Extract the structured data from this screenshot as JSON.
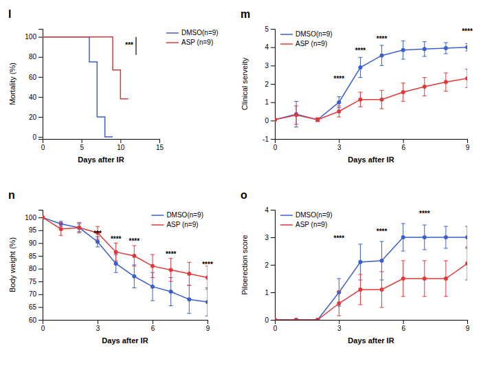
{
  "chart_data": [
    {
      "type": "line",
      "title": "l",
      "xlabel": "Days after IR",
      "ylabel": "Mortality (%)",
      "xlim": [
        0,
        15
      ],
      "ylim": [
        -2,
        108
      ],
      "xticks": [
        0,
        5,
        10,
        15
      ],
      "yticks": [
        0,
        20,
        40,
        60,
        80,
        100
      ],
      "grid": false,
      "legend": "right",
      "series": [
        {
          "name": "DMSO(n=9)",
          "color": "#3a5fcd",
          "x": [
            0,
            6,
            6,
            7,
            7,
            8,
            8,
            9
          ],
          "values": [
            100,
            100,
            75,
            75,
            20,
            20,
            0,
            0
          ]
        },
        {
          "name": "ASP (n=9)",
          "color": "#e0393a",
          "x": [
            0,
            9,
            9,
            10,
            10,
            11
          ],
          "values": [
            100,
            100,
            67,
            67,
            38,
            38
          ]
        }
      ],
      "annotations": [
        {
          "x": 12.0,
          "y1": 82,
          "y2": 100,
          "text": "***"
        }
      ]
    },
    {
      "type": "line",
      "title": "m",
      "xlabel": "Days after IR",
      "ylabel": "Clinical serveity",
      "xlim": [
        0,
        9
      ],
      "ylim": [
        -1,
        5
      ],
      "xticks": [
        0,
        3,
        6,
        9
      ],
      "yticks": [
        -1,
        0,
        1,
        2,
        3,
        4,
        5
      ],
      "grid": false,
      "legend": "upper left",
      "x": [
        0,
        1,
        2,
        3,
        4,
        5,
        6,
        7,
        8,
        9
      ],
      "series": [
        {
          "name": "DMSO(n=9)",
          "color": "#3a5fcd",
          "marker": "circle",
          "values": [
            0.05,
            0.35,
            0.05,
            1.0,
            2.9,
            3.55,
            3.85,
            3.9,
            3.95,
            4.0
          ],
          "errors": [
            0.05,
            0.7,
            0.1,
            0.3,
            0.55,
            0.55,
            0.5,
            0.4,
            0.3,
            0.2
          ]
        },
        {
          "name": "ASP (n=9)",
          "color": "#e0393a",
          "marker": "circle",
          "values": [
            0.05,
            0.3,
            0.05,
            0.5,
            1.15,
            1.15,
            1.55,
            1.85,
            2.1,
            2.3
          ],
          "errors": [
            0.05,
            0.5,
            0.1,
            0.3,
            0.4,
            0.5,
            0.5,
            0.5,
            0.5,
            0.5
          ]
        }
      ],
      "annotations": [
        {
          "x": 3,
          "y": 2.1,
          "text": "****"
        },
        {
          "x": 4,
          "y": 3.65,
          "text": "****"
        },
        {
          "x": 5,
          "y": 4.3,
          "text": "****"
        },
        {
          "x": 9,
          "y": 4.7,
          "text": "****"
        }
      ]
    },
    {
      "type": "line",
      "title": "n",
      "xlabel": "Days after IR",
      "ylabel": "Body weight (%)",
      "xlim": [
        0,
        9
      ],
      "ylim": [
        60,
        103
      ],
      "xticks": [
        0,
        3,
        6,
        9
      ],
      "yticks": [
        60,
        65,
        70,
        75,
        80,
        85,
        90,
        95,
        100
      ],
      "grid": false,
      "legend": "upper right",
      "x": [
        0,
        1,
        2,
        3,
        4,
        5,
        6,
        7,
        8,
        9
      ],
      "series": [
        {
          "name": "DMSO(n=9)",
          "color": "#3a5fcd",
          "marker": "circle",
          "values": [
            100,
            97.5,
            96,
            90.5,
            82,
            77,
            73,
            71,
            68,
            67
          ],
          "errors": [
            0.5,
            1.0,
            1.5,
            2.0,
            3.5,
            4.5,
            5.5,
            5.5,
            5.5,
            5.5
          ]
        },
        {
          "name": "ASP (n=9)",
          "color": "#e0393a",
          "marker": "circle",
          "values": [
            100,
            95.5,
            96,
            94,
            86.5,
            85,
            81,
            79.5,
            78,
            76.5
          ],
          "errors": [
            0.5,
            2.5,
            2.0,
            2.5,
            3.5,
            4.0,
            4.5,
            4.5,
            4.5,
            4.5
          ]
        }
      ],
      "annotations": [
        {
          "x": 3,
          "y": 92.5,
          "text": "***"
        },
        {
          "x": 4,
          "y": 90.5,
          "text": "****"
        },
        {
          "x": 5,
          "y": 89.5,
          "text": "****"
        },
        {
          "x": 7,
          "y": 84.5,
          "text": "****"
        },
        {
          "x": 9,
          "y": 80.5,
          "text": "****"
        }
      ]
    },
    {
      "type": "line",
      "title": "o",
      "xlabel": "Days after IR",
      "ylabel": "Piloerection score",
      "xlim": [
        0,
        9
      ],
      "ylim": [
        0,
        4
      ],
      "xticks": [
        0,
        3,
        6,
        9
      ],
      "yticks": [
        0,
        1,
        2,
        3,
        4
      ],
      "grid": false,
      "legend": "upper left",
      "x": [
        0,
        1,
        2,
        3,
        4,
        5,
        6,
        7,
        8,
        9
      ],
      "series": [
        {
          "name": "DMSO(n=9)",
          "color": "#3a5fcd",
          "marker": "circle",
          "values": [
            0,
            0,
            0,
            1.0,
            2.1,
            2.15,
            3.0,
            3.0,
            3.0,
            3.0
          ],
          "errors": [
            0,
            0,
            0,
            0.5,
            0.65,
            0.7,
            0.5,
            0.45,
            0.4,
            0.4
          ]
        },
        {
          "name": "ASP (n=9)",
          "color": "#e0393a",
          "marker": "circle",
          "values": [
            0,
            0,
            0,
            0.6,
            1.1,
            1.1,
            1.5,
            1.5,
            1.5,
            2.05
          ],
          "errors": [
            0,
            0,
            0,
            0.45,
            0.55,
            0.65,
            0.65,
            0.65,
            0.65,
            0.6
          ]
        }
      ],
      "annotations": [
        {
          "x": 3,
          "y": 2.85,
          "text": "****"
        },
        {
          "x": 5,
          "y": 3.1,
          "text": "****"
        },
        {
          "x": 7,
          "y": 3.75,
          "text": "****"
        }
      ]
    }
  ]
}
